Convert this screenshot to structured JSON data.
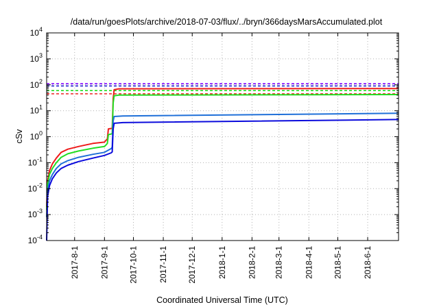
{
  "chart_data": {
    "type": "line",
    "title": "/data/run/goesPlots/archive/2018-07-03/flux/../bryn/366daysMarsAccumulated.plot",
    "xlabel": "Coordinated Universal Time (UTC)",
    "ylabel": "cSv",
    "y_scale": "log",
    "ylim": [
      0.0001,
      10000
    ],
    "xlim": [
      "2017-07-03",
      "2018-07-03"
    ],
    "grid": true,
    "legend": "none",
    "x_ticks": [
      "2017-8-1",
      "2017-9-1",
      "2017-10-1",
      "2017-11-1",
      "2017-12-1",
      "2018-1-1",
      "2018-2-1",
      "2018-3-1",
      "2018-4-1",
      "2018-5-1",
      "2018-6-1"
    ],
    "y_ticks": [
      {
        "value": 0.0001,
        "base": "10",
        "exp": "-4"
      },
      {
        "value": 0.001,
        "base": "10",
        "exp": "-3"
      },
      {
        "value": 0.01,
        "base": "10",
        "exp": "-2"
      },
      {
        "value": 0.1,
        "base": "10",
        "exp": "-1"
      },
      {
        "value": 1,
        "base": "10",
        "exp": "0"
      },
      {
        "value": 10,
        "base": "10",
        "exp": "1"
      },
      {
        "value": 100,
        "base": "10",
        "exp": "2"
      },
      {
        "value": 1000,
        "base": "10",
        "exp": "3"
      },
      {
        "value": 10000,
        "base": "10",
        "exp": "4"
      }
    ],
    "reference_lines": [
      {
        "value": 110,
        "color": "#8000ff"
      },
      {
        "value": 90,
        "color": "#1f1fcf"
      },
      {
        "value": 60,
        "color": "#22dd22"
      },
      {
        "value": 45,
        "color": "#ee2020"
      }
    ],
    "series": [
      {
        "color": "#ee1b1b",
        "points": [
          [
            "2017-07-03",
            0.002
          ],
          [
            "2017-07-04",
            0.02
          ],
          [
            "2017-07-06",
            0.05
          ],
          [
            "2017-07-09",
            0.09
          ],
          [
            "2017-07-13",
            0.15
          ],
          [
            "2017-07-18",
            0.25
          ],
          [
            "2017-07-25",
            0.33
          ],
          [
            "2017-08-05",
            0.42
          ],
          [
            "2017-08-20",
            0.55
          ],
          [
            "2017-09-01",
            0.62
          ],
          [
            "2017-09-03",
            0.75
          ],
          [
            "2017-09-04",
            0.82
          ],
          [
            "2017-09-05",
            2.0
          ],
          [
            "2017-09-09",
            2.1
          ],
          [
            "2017-09-10",
            30
          ],
          [
            "2017-09-11",
            65
          ],
          [
            "2017-09-16",
            70
          ],
          [
            "2018-07-03",
            72
          ]
        ]
      },
      {
        "color": "#22dd22",
        "points": [
          [
            "2017-07-03",
            0.0015
          ],
          [
            "2017-07-04",
            0.015
          ],
          [
            "2017-07-06",
            0.035
          ],
          [
            "2017-07-09",
            0.06
          ],
          [
            "2017-07-13",
            0.1
          ],
          [
            "2017-07-18",
            0.16
          ],
          [
            "2017-07-25",
            0.22
          ],
          [
            "2017-08-05",
            0.28
          ],
          [
            "2017-08-20",
            0.36
          ],
          [
            "2017-09-01",
            0.42
          ],
          [
            "2017-09-03",
            0.5
          ],
          [
            "2017-09-04",
            0.55
          ],
          [
            "2017-09-05",
            1.2
          ],
          [
            "2017-09-09",
            1.3
          ],
          [
            "2017-09-10",
            20
          ],
          [
            "2017-09-11",
            38
          ],
          [
            "2017-09-16",
            40
          ],
          [
            "2018-07-03",
            42
          ]
        ]
      },
      {
        "color": "#1e6fd8",
        "points": [
          [
            "2017-07-03",
            0.0008
          ],
          [
            "2017-07-04",
            0.008
          ],
          [
            "2017-07-06",
            0.02
          ],
          [
            "2017-07-09",
            0.035
          ],
          [
            "2017-07-13",
            0.06
          ],
          [
            "2017-07-18",
            0.09
          ],
          [
            "2017-07-25",
            0.12
          ],
          [
            "2017-08-05",
            0.16
          ],
          [
            "2017-08-20",
            0.21
          ],
          [
            "2017-09-01",
            0.25
          ],
          [
            "2017-09-08",
            0.35
          ],
          [
            "2017-09-09",
            0.4
          ],
          [
            "2017-09-10",
            4.0
          ],
          [
            "2017-09-11",
            6.0
          ],
          [
            "2017-09-20",
            6.3
          ],
          [
            "2018-07-03",
            8.0
          ]
        ]
      },
      {
        "color": "#0a0adc",
        "points": [
          [
            "2017-07-03",
            0.0001
          ],
          [
            "2017-07-04",
            0.005
          ],
          [
            "2017-07-06",
            0.013
          ],
          [
            "2017-07-09",
            0.024
          ],
          [
            "2017-07-13",
            0.04
          ],
          [
            "2017-07-18",
            0.06
          ],
          [
            "2017-07-25",
            0.08
          ],
          [
            "2017-08-05",
            0.11
          ],
          [
            "2017-08-20",
            0.15
          ],
          [
            "2017-09-01",
            0.19
          ],
          [
            "2017-09-08",
            0.24
          ],
          [
            "2017-09-09",
            0.26
          ],
          [
            "2017-09-10",
            2.0
          ],
          [
            "2017-09-11",
            3.3
          ],
          [
            "2017-09-20",
            3.5
          ],
          [
            "2018-07-03",
            4.6
          ]
        ]
      }
    ]
  }
}
